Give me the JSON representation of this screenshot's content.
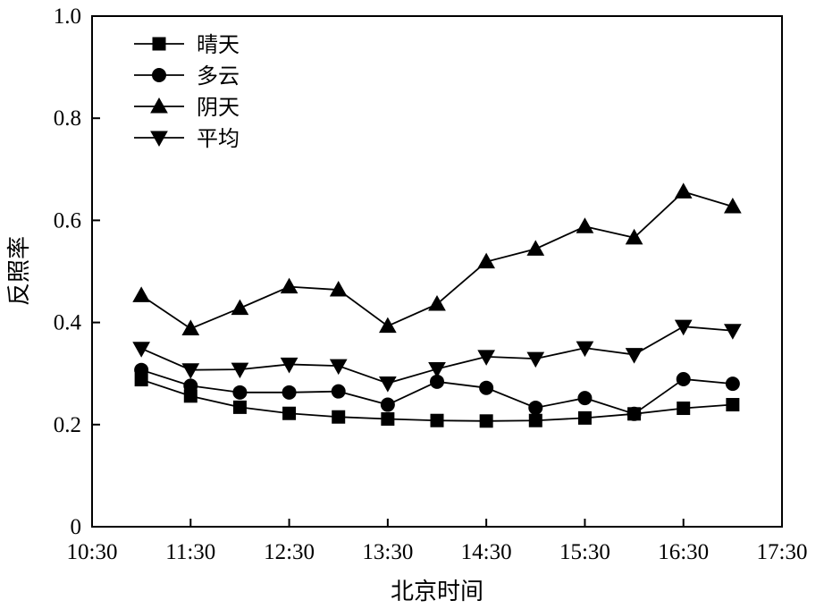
{
  "chart_data": {
    "type": "line",
    "xlabel": "北京时间",
    "ylabel": "反照率",
    "xlim": [
      "10:30",
      "17:30"
    ],
    "ylim": [
      0,
      1.0
    ],
    "x_ticks": [
      "10:30",
      "11:30",
      "12:30",
      "13:30",
      "14:30",
      "15:30",
      "16:30",
      "17:30"
    ],
    "y_ticks": [
      "0",
      "0.2",
      "0.4",
      "0.6",
      "0.8",
      "1.0"
    ],
    "x": [
      "11:00",
      "11:30",
      "12:00",
      "12:30",
      "13:00",
      "13:30",
      "14:00",
      "14:30",
      "15:00",
      "15:30",
      "16:00",
      "16:30",
      "17:00"
    ],
    "grid": false,
    "legend_position": "top-left",
    "series": [
      {
        "name": "晴天",
        "marker": "square",
        "values": [
          0.288,
          0.256,
          0.234,
          0.222,
          0.215,
          0.211,
          0.208,
          0.207,
          0.208,
          0.213,
          0.221,
          0.232,
          0.239
        ]
      },
      {
        "name": "多云",
        "marker": "circle",
        "values": [
          0.307,
          0.276,
          0.263,
          0.263,
          0.265,
          0.239,
          0.284,
          0.272,
          0.233,
          0.252,
          0.221,
          0.289,
          0.28
        ]
      },
      {
        "name": "阴天",
        "marker": "triangle-up",
        "values": [
          0.453,
          0.388,
          0.428,
          0.47,
          0.464,
          0.393,
          0.436,
          0.519,
          0.544,
          0.588,
          0.566,
          0.656,
          0.627
        ]
      },
      {
        "name": "平均",
        "marker": "triangle-down",
        "values": [
          0.349,
          0.307,
          0.308,
          0.318,
          0.315,
          0.281,
          0.309,
          0.333,
          0.329,
          0.35,
          0.337,
          0.392,
          0.384
        ]
      }
    ]
  }
}
